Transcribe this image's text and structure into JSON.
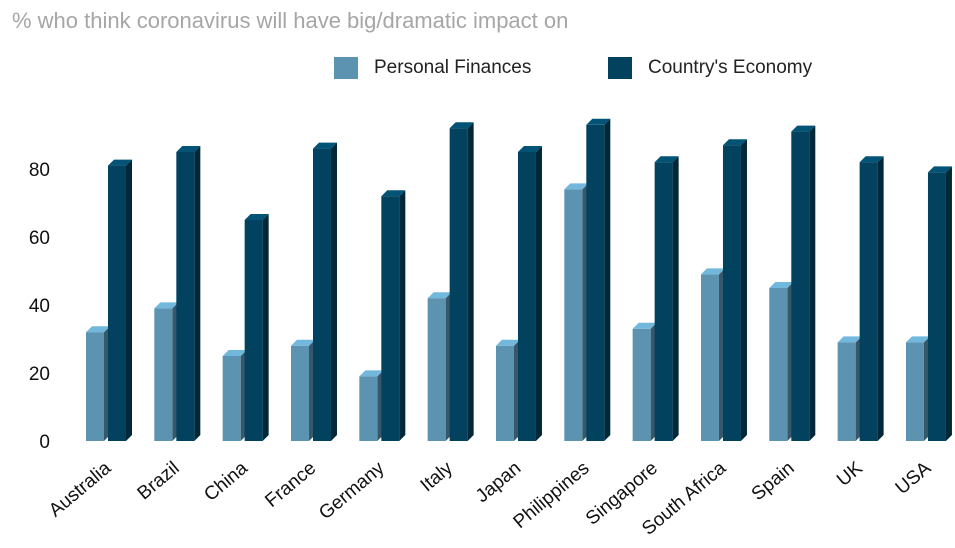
{
  "chart_data": {
    "type": "bar",
    "title": "% who think coronavirus will have big/dramatic impact on",
    "categories": [
      "Australia",
      "Brazil",
      "China",
      "France",
      "Germany",
      "Italy",
      "Japan",
      "Philippines",
      "Singapore",
      "South Africa",
      "Spain",
      "UK",
      "USA"
    ],
    "series": [
      {
        "name": "Personal Finances",
        "color": "#5b93b1",
        "values": [
          32,
          39,
          25,
          28,
          19,
          42,
          28,
          74,
          33,
          49,
          45,
          29,
          29
        ]
      },
      {
        "name": "Country's Economy",
        "color": "#02425e",
        "values": [
          81,
          85,
          65,
          86,
          72,
          92,
          85,
          93,
          82,
          87,
          91,
          82,
          79
        ]
      }
    ],
    "yticks": [
      0,
      20,
      40,
      60,
      80
    ],
    "ylim": [
      0,
      100
    ],
    "grid": false,
    "legend": "top-right"
  }
}
